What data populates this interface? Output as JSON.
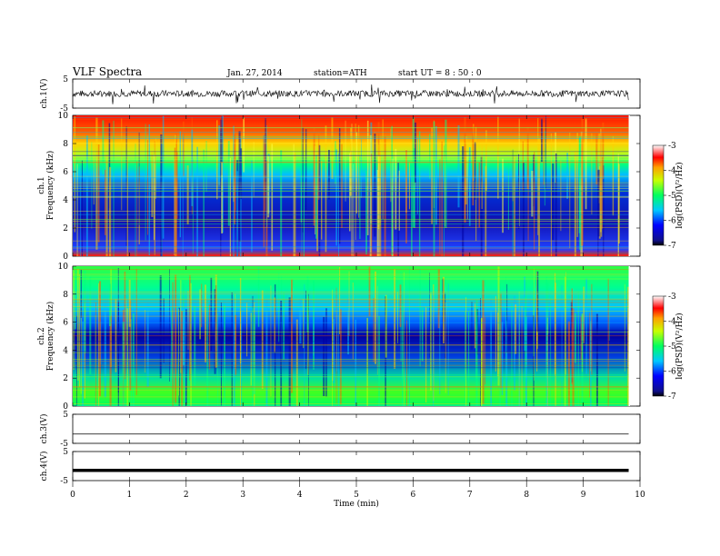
{
  "header": {
    "title": "VLF Spectra",
    "date": "Jan. 27, 2014",
    "station": "station=ATH",
    "start": "start UT = 8 : 50 : 0"
  },
  "chart_data": [
    {
      "type": "line",
      "id": "ch1-waveform",
      "ylabel": "ch.1(V)",
      "ylim": [
        -5,
        5
      ],
      "yticks": [
        "5",
        "-5"
      ],
      "description_free": true,
      "trace_color": "#000000",
      "xlim": [
        0,
        9.8
      ]
    },
    {
      "type": "heatmap",
      "id": "ch1-spectrogram",
      "ylabel_channel": "ch.1",
      "ylabel": "Frequency (kHz)",
      "ylim": [
        0,
        10
      ],
      "yticks": [
        "0",
        "2",
        "4",
        "6",
        "8",
        "10"
      ],
      "xlim": [
        0,
        9.8
      ],
      "colorbar": {
        "label": "log(PSD)(V²/Hz)",
        "range": [
          -7,
          -3
        ],
        "ticks": [
          "-3",
          "-4",
          "-5",
          "-6",
          "-7"
        ]
      }
    },
    {
      "type": "heatmap",
      "id": "ch2-spectrogram",
      "ylabel_channel": "ch.2",
      "ylabel": "Frequency (kHz)",
      "ylim": [
        0,
        10
      ],
      "yticks": [
        "0",
        "2",
        "4",
        "6",
        "8",
        "10"
      ],
      "xlim": [
        0,
        9.8
      ],
      "colorbar": {
        "label": "log(PSD)(V²/Hz)",
        "range": [
          -7,
          -3
        ],
        "ticks": [
          "-3",
          "-4",
          "-5",
          "-6",
          "-7"
        ]
      }
    },
    {
      "type": "line",
      "id": "ch3-waveform",
      "ylabel": "ch.3(V)",
      "ylim": [
        -5,
        5
      ],
      "yticks": [
        "5",
        "-5"
      ],
      "level": -1.8,
      "xlim": [
        0,
        9.8
      ]
    },
    {
      "type": "line",
      "id": "ch4-waveform",
      "ylabel": "ch.4(V)",
      "ylim": [
        -5,
        5
      ],
      "yticks": [
        "5",
        "-5"
      ],
      "level": -1.5,
      "xlim": [
        0,
        9.8
      ]
    }
  ],
  "xaxis": {
    "label": "Time (min)",
    "range": [
      0,
      10
    ],
    "ticks": [
      "0",
      "1",
      "2",
      "3",
      "4",
      "5",
      "6",
      "7",
      "8",
      "9",
      "10"
    ]
  }
}
